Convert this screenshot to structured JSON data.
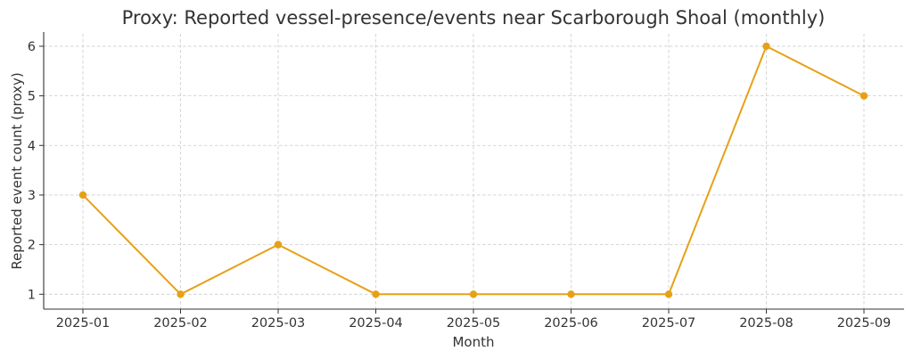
{
  "chart_data": {
    "type": "line",
    "title": "Proxy: Reported vessel-presence/events near Scarborough Shoal (monthly)",
    "xlabel": "Month",
    "ylabel": "Reported event count (proxy)",
    "categories": [
      "2025-01",
      "2025-02",
      "2025-03",
      "2025-04",
      "2025-05",
      "2025-06",
      "2025-07",
      "2025-08",
      "2025-09"
    ],
    "series": [
      {
        "values": [
          3,
          1,
          2,
          1,
          1,
          1,
          1,
          6,
          5
        ]
      }
    ],
    "yticks": [
      "1",
      "2",
      "3",
      "4",
      "5",
      "6"
    ],
    "ylim": [
      0.7,
      6.25
    ],
    "grid": true,
    "line_color": "#E6A117"
  }
}
